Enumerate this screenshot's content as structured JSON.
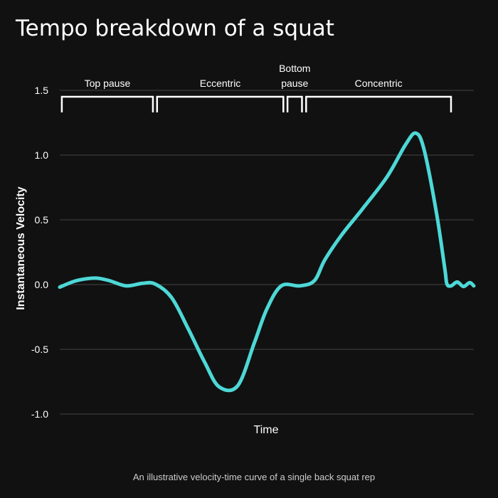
{
  "chart_data": {
    "type": "line",
    "title": "Tempo breakdown of a squat",
    "xlabel": "Time",
    "ylabel": "Instantaneous Velocity",
    "caption": "An illustrative velocity-time curve of a single back squat rep",
    "ylim": [
      -1.0,
      1.5
    ],
    "yticks": [
      {
        "value": -1.0,
        "label": "-1.0"
      },
      {
        "value": -0.5,
        "label": "-0.5"
      },
      {
        "value": 0.0,
        "label": "0.0"
      },
      {
        "value": 0.5,
        "label": "0.5"
      },
      {
        "value": 1.0,
        "label": "1.0"
      },
      {
        "value": 1.5,
        "label": "1.5"
      }
    ],
    "grid": true,
    "line_color": "#4dd8d6",
    "text_color": "#ffffff",
    "grid_color": "#444444",
    "background": "#111111",
    "xlim": [
      0,
      1
    ],
    "series": [
      {
        "name": "",
        "points": [
          [
            0.0,
            -0.02
          ],
          [
            0.04,
            0.03
          ],
          [
            0.085,
            0.05
          ],
          [
            0.12,
            0.03
          ],
          [
            0.16,
            -0.01
          ],
          [
            0.2,
            0.01
          ],
          [
            0.23,
            0.005
          ],
          [
            0.27,
            -0.1
          ],
          [
            0.31,
            -0.34
          ],
          [
            0.35,
            -0.6
          ],
          [
            0.385,
            -0.79
          ],
          [
            0.43,
            -0.78
          ],
          [
            0.47,
            -0.45
          ],
          [
            0.5,
            -0.19
          ],
          [
            0.535,
            -0.01
          ],
          [
            0.58,
            -0.01
          ],
          [
            0.615,
            0.03
          ],
          [
            0.64,
            0.19
          ],
          [
            0.68,
            0.38
          ],
          [
            0.73,
            0.58
          ],
          [
            0.79,
            0.83
          ],
          [
            0.835,
            1.08
          ],
          [
            0.86,
            1.17
          ],
          [
            0.88,
            1.04
          ],
          [
            0.91,
            0.55
          ],
          [
            0.93,
            0.12
          ],
          [
            0.935,
            0.005
          ],
          [
            0.945,
            -0.01
          ],
          [
            0.96,
            0.02
          ],
          [
            0.975,
            -0.015
          ],
          [
            0.99,
            0.015
          ],
          [
            1.0,
            -0.01
          ]
        ]
      }
    ],
    "phases": [
      {
        "label_lines": [
          "Top pause"
        ],
        "start": 0.005,
        "end": 0.225
      },
      {
        "label_lines": [
          "Eccentric"
        ],
        "start": 0.235,
        "end": 0.54
      },
      {
        "label_lines": [
          "Bottom",
          "pause"
        ],
        "start": 0.55,
        "end": 0.585
      },
      {
        "label_lines": [
          "Concentric"
        ],
        "start": 0.595,
        "end": 0.945
      }
    ]
  }
}
